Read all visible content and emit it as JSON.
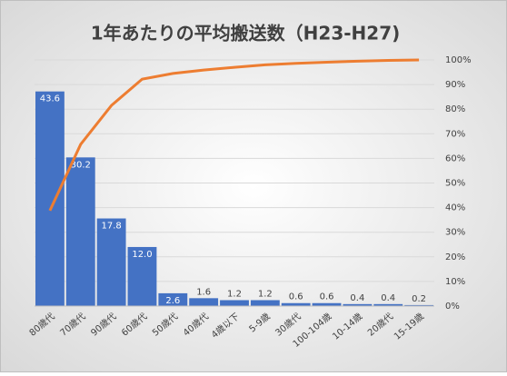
{
  "chart_data": {
    "type": "pareto",
    "title": "1年あたりの平均搬送数（H23-H27)",
    "categories": [
      "80歳代",
      "70歳代",
      "90歳代",
      "60歳代",
      "50歳代",
      "40歳代",
      "4歳以下",
      "5-9歳",
      "30歳代",
      "100-104歳",
      "10-14歳",
      "20歳代",
      "15-19歳"
    ],
    "series": [
      {
        "type": "bar",
        "color": "#4472c4",
        "values": [
          43.6,
          30.2,
          17.8,
          12.0,
          2.6,
          1.6,
          1.2,
          1.2,
          0.6,
          0.6,
          0.4,
          0.4,
          0.2
        ],
        "value_labels": [
          "43.6",
          "30.2",
          "17.8",
          "12.0",
          "2.6",
          "1.6",
          "1.2",
          "1.2",
          "0.6",
          "0.6",
          "0.4",
          "0.4",
          "0.2"
        ]
      },
      {
        "type": "line",
        "axis": "y2",
        "color": "#ed7d31",
        "values": [
          38.8,
          65.7,
          81.5,
          92.2,
          94.5,
          95.9,
          97.0,
          98.0,
          98.6,
          99.1,
          99.5,
          99.8,
          100
        ]
      }
    ],
    "ylim": [
      0,
      50
    ],
    "y2lim": [
      0,
      100
    ],
    "y2ticks": [
      {
        "value": 0,
        "label": "0%"
      },
      {
        "value": 10,
        "label": "10%"
      },
      {
        "value": 20,
        "label": "20%"
      },
      {
        "value": 30,
        "label": "30%"
      },
      {
        "value": 40,
        "label": "40%"
      },
      {
        "value": 50,
        "label": "50%"
      },
      {
        "value": 60,
        "label": "60%"
      },
      {
        "value": 70,
        "label": "70%"
      },
      {
        "value": 80,
        "label": "80%"
      },
      {
        "value": 90,
        "label": "90%"
      },
      {
        "value": 100,
        "label": "100%"
      }
    ],
    "grid": true
  }
}
